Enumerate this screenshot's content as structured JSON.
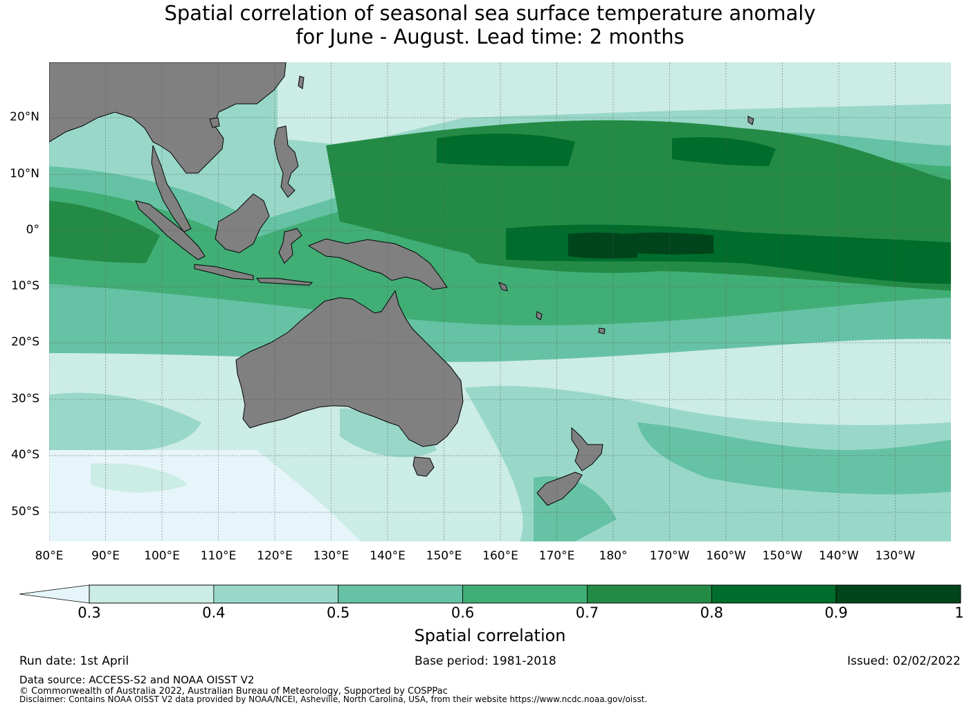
{
  "title": {
    "line1": "Spatial correlation of seasonal sea surface temperature anomaly",
    "line2": "for June - August. Lead time: 2 months"
  },
  "map": {
    "lat_labels": [
      "20°N",
      "10°N",
      "0°",
      "10°S",
      "20°S",
      "30°S",
      "40°S",
      "50°S"
    ],
    "lon_labels": [
      "80°E",
      "90°E",
      "100°E",
      "110°E",
      "120°E",
      "130°E",
      "140°E",
      "150°E",
      "160°E",
      "170°E",
      "180°",
      "170°W",
      "160°W",
      "150°W",
      "140°W",
      "130°W"
    ],
    "colors": {
      "land": "#808080",
      "below": "#e6f5f9",
      "levels": [
        "#ccece6",
        "#99d8c9",
        "#66c2a4",
        "#41ae76",
        "#238b45",
        "#006d2c",
        "#00441b"
      ]
    }
  },
  "colorbar": {
    "ticks": [
      "0.3",
      "0.4",
      "0.5",
      "0.6",
      "0.7",
      "0.8",
      "0.9",
      "1"
    ],
    "label": "Spatial correlation"
  },
  "footer": {
    "run_date": "Run date: 1st April",
    "base_period": "Base period: 1981-2018",
    "issued": "Issued: 02/02/2022",
    "data_source": "Data source: ACCESS-S2 and NOAA OISST V2",
    "copyright": "© Commonwealth of Australia 2022, Australian Bureau of Meteorology, Supported by COSPPac",
    "disclaimer": "Disclaimer: Contains NOAA OISST V2 data provided by NOAA/NCEI, Asheville, North Carolina, USA, from their website https://www.ncdc.noaa.gov/oisst."
  }
}
